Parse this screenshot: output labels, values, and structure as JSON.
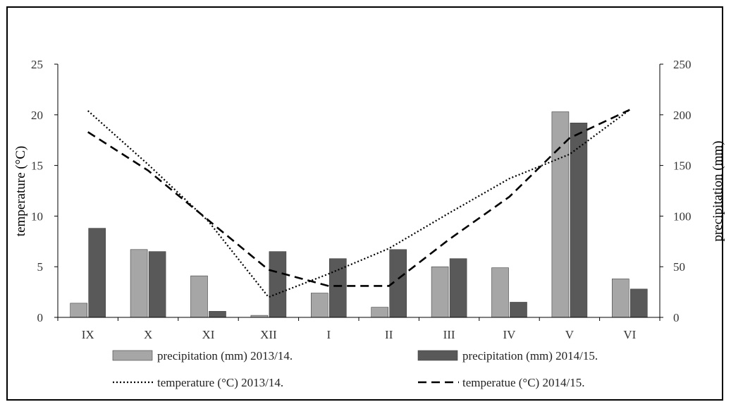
{
  "chart_data": {
    "type": "bar",
    "categories": [
      "IX",
      "X",
      "XI",
      "XII",
      "I",
      "II",
      "III",
      "IV",
      "V",
      "VI"
    ],
    "y_left": {
      "label": "temperature (°C)",
      "ylim": [
        0,
        25
      ],
      "ticks": [
        0,
        5,
        10,
        15,
        20,
        25
      ]
    },
    "y_right": {
      "label": "precipitation (mm)",
      "ylim": [
        0,
        250
      ],
      "ticks": [
        0,
        50,
        100,
        150,
        200,
        250
      ]
    },
    "grid": false,
    "series": [
      {
        "name": "precipitation (mm) 2013/14.",
        "type": "bar",
        "axis": "right",
        "color": "#a6a6a6",
        "values": [
          14,
          67,
          41,
          2,
          24,
          10,
          50,
          49,
          203,
          38
        ]
      },
      {
        "name": "precipitation (mm) 2014/15.",
        "type": "bar",
        "axis": "right",
        "color": "#595959",
        "values": [
          88,
          65,
          6,
          65,
          58,
          67,
          58,
          15,
          192,
          28
        ]
      },
      {
        "name": "temperature (°C) 2013/14.",
        "type": "line",
        "dash": "dotted",
        "axis": "left",
        "color": "#000000",
        "values": [
          20.4,
          15.1,
          9.5,
          2.0,
          4.3,
          6.8,
          10.3,
          13.7,
          16.1,
          20.5
        ]
      },
      {
        "name": "temperatue (°C) 2014/15.",
        "type": "line",
        "dash": "dashed",
        "axis": "left",
        "color": "#000000",
        "values": [
          18.3,
          14.5,
          9.6,
          4.7,
          3.1,
          3.1,
          7.7,
          11.9,
          17.7,
          20.5
        ]
      }
    ],
    "legend_position": "bottom"
  }
}
